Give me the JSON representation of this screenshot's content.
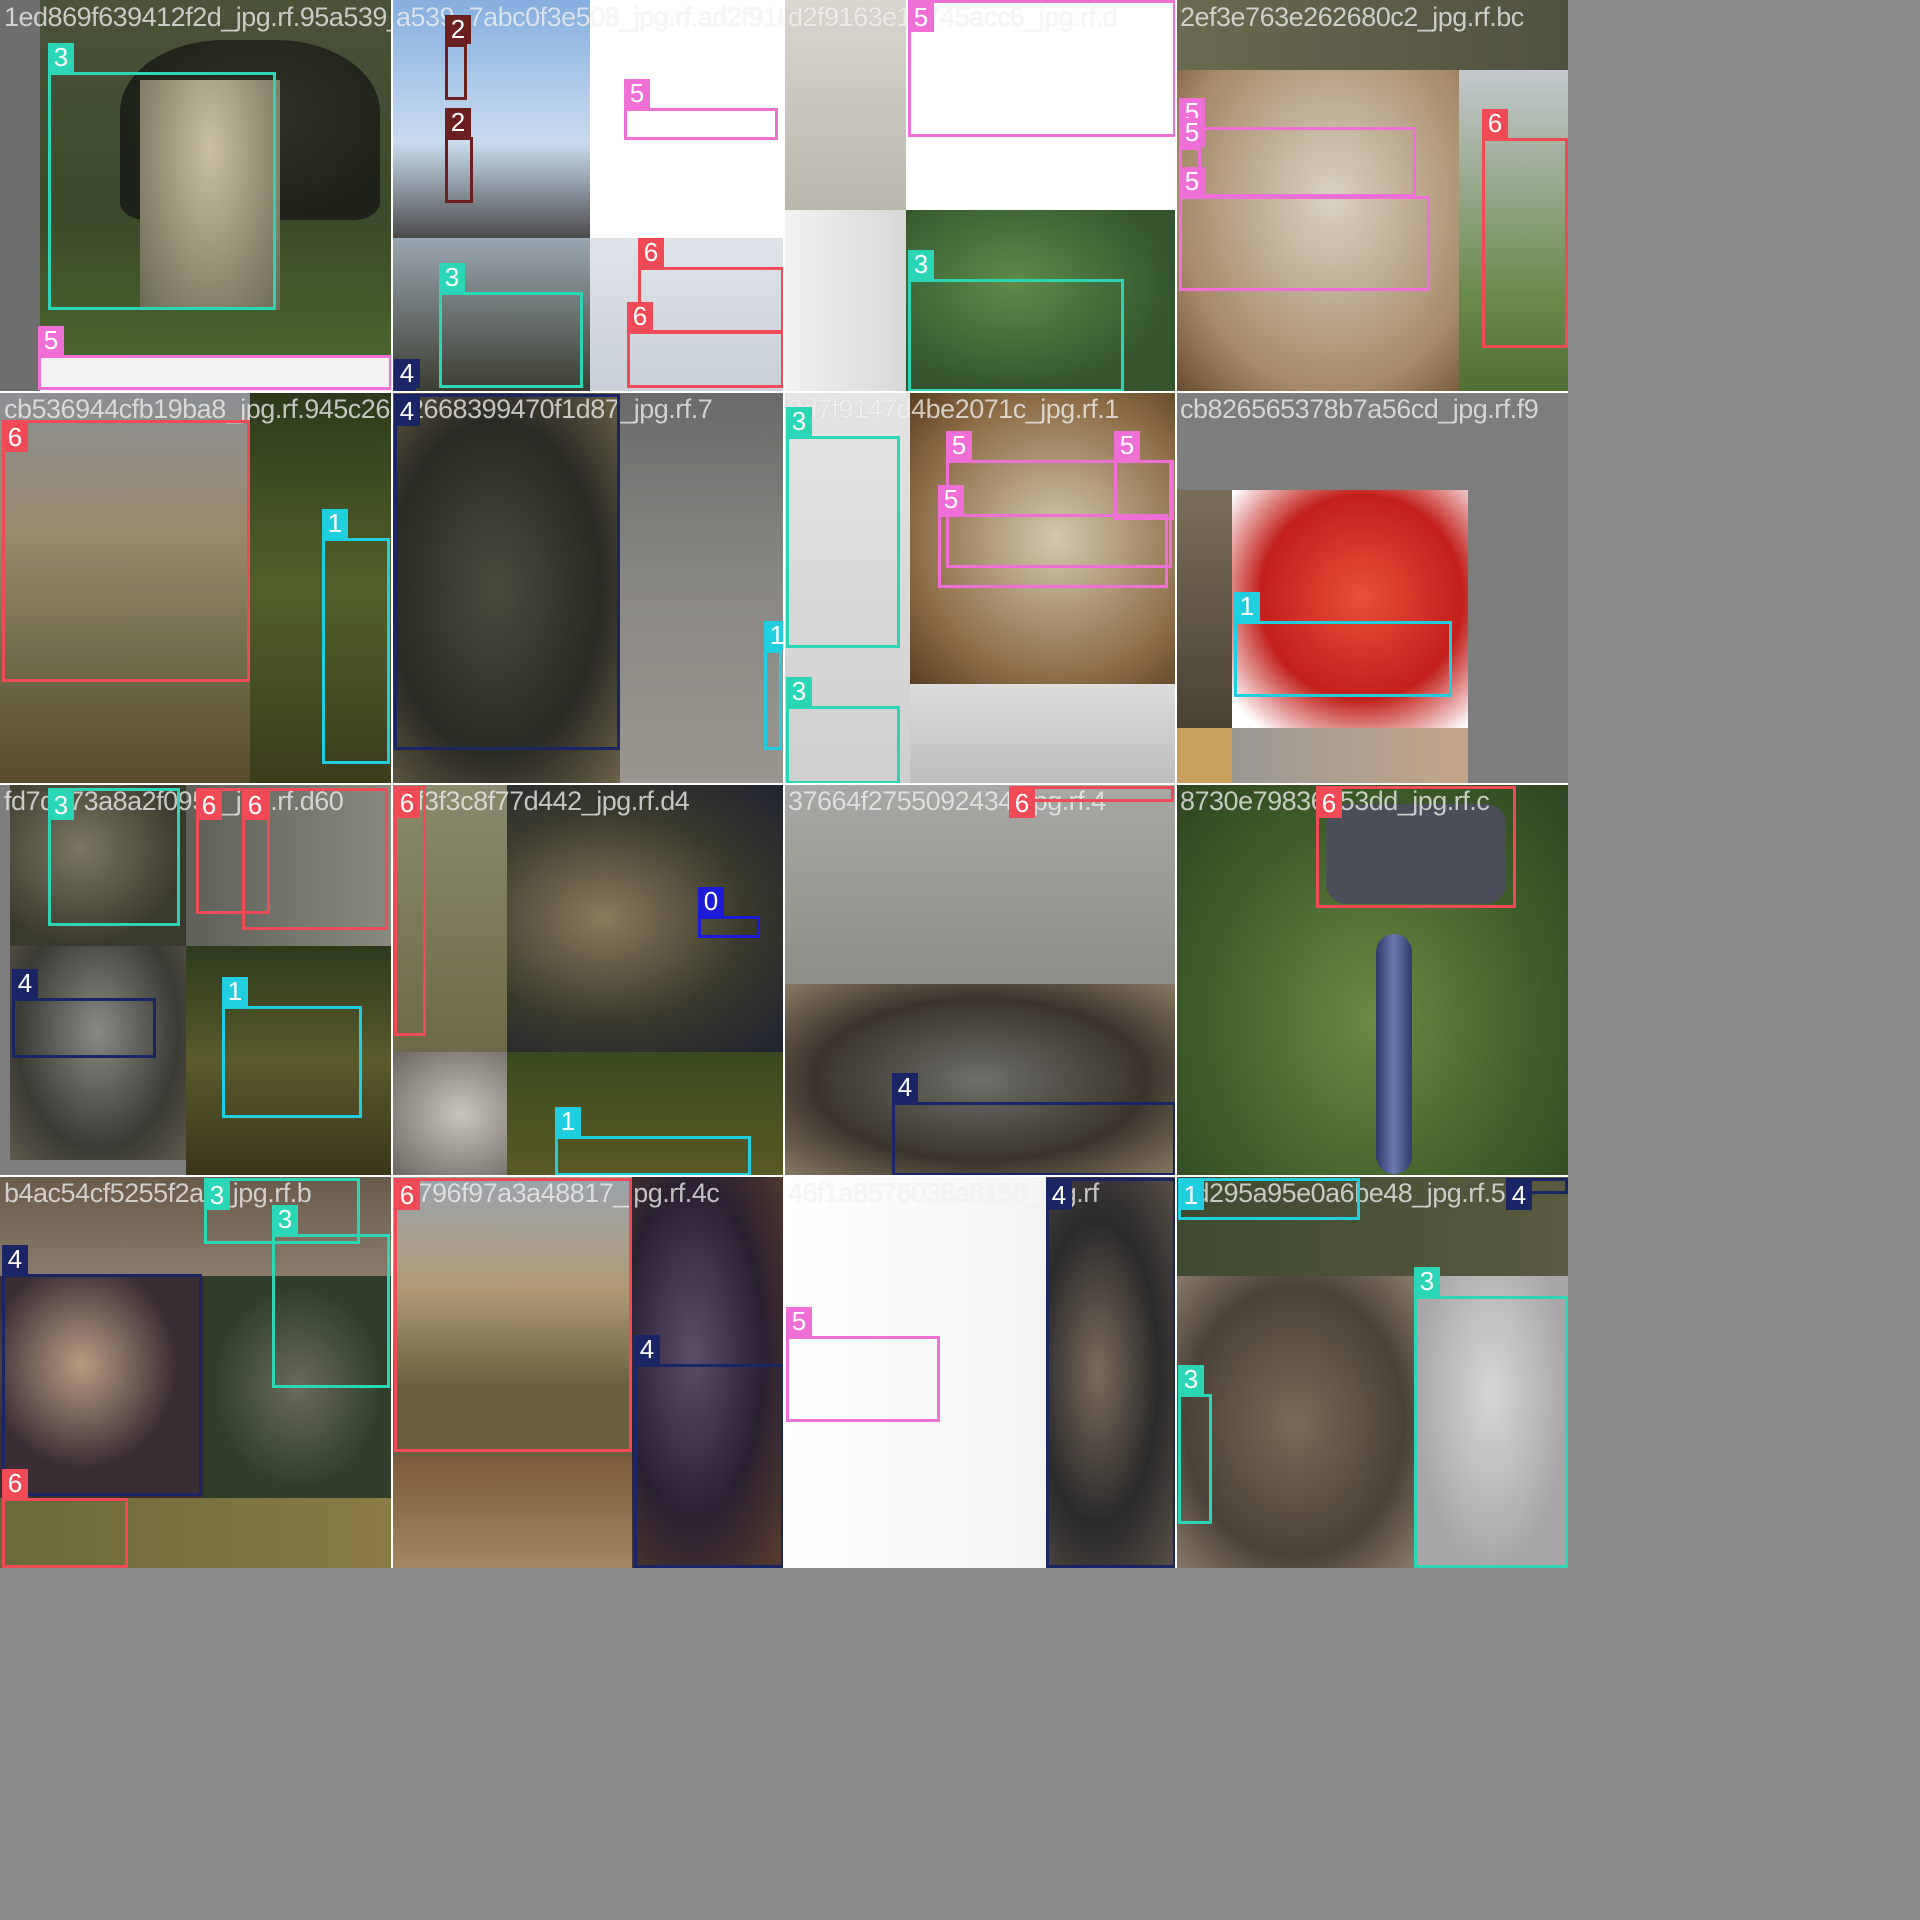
{
  "image": {
    "kind": "YOLO training batch mosaic",
    "grid": "4x4",
    "class_colors": {
      "0": "#1c1cd8",
      "1": "#1fcfe0",
      "2": "#6b1f1f",
      "3": "#2bd6b6",
      "4": "#1a2566",
      "5": "#ef6fd6",
      "6": "#ef4a55"
    }
  },
  "tiles": [
    {
      "filename": "1ed869f639412f2d_jpg.rf.95a539_7abc0f3e508_jpg.rf.ad",
      "boxes": [
        {
          "cls": "3"
        },
        {
          "cls": "5"
        }
      ]
    },
    {
      "filename": "a539_7abc0f3e508_jpg.rf.ad2f9163e10745",
      "boxes": [
        {
          "cls": "2"
        },
        {
          "cls": "2"
        },
        {
          "cls": "5"
        },
        {
          "cls": "3"
        },
        {
          "cls": "6"
        },
        {
          "cls": "6"
        },
        {
          "cls": "4"
        }
      ]
    },
    {
      "filename": "d2f9163e10745acc6_jpg.rf.d",
      "boxes": [
        {
          "cls": "5"
        },
        {
          "cls": "3"
        }
      ]
    },
    {
      "filename": "2ef3e763e262680c2_jpg.rf.bc",
      "boxes": [
        {
          "cls": "5"
        },
        {
          "cls": "5"
        },
        {
          "cls": "5"
        },
        {
          "cls": "6"
        }
      ]
    },
    {
      "filename": "cb536944cfb19ba8_jpg.rf.945c26683994d0f1d87_jpg.rf.7",
      "boxes": [
        {
          "cls": "6"
        },
        {
          "cls": "1"
        }
      ]
    },
    {
      "filename": "c2668399470f1d87_jpg.rf.7",
      "boxes": [
        {
          "cls": "4"
        },
        {
          "cls": "1"
        }
      ]
    },
    {
      "filename": "9d7f9147d4be2071c_jpg.rf.1",
      "boxes": [
        {
          "cls": "3"
        },
        {
          "cls": "5"
        },
        {
          "cls": "5"
        },
        {
          "cls": "5"
        },
        {
          "cls": "3"
        }
      ]
    },
    {
      "filename": "cb826565378b7a56cd_jpg.rf.f9",
      "boxes": [
        {
          "cls": "1"
        }
      ]
    },
    {
      "filename": "fd7d573a8a2f0953_jpg.rf.d60",
      "boxes": [
        {
          "cls": "3"
        },
        {
          "cls": "6"
        },
        {
          "cls": "6"
        },
        {
          "cls": "4"
        },
        {
          "cls": "1"
        }
      ]
    },
    {
      "filename": "0ff3f3c8f77d442_jpg.rf.d4",
      "boxes": [
        {
          "cls": "6"
        },
        {
          "cls": "0"
        },
        {
          "cls": "1"
        }
      ]
    },
    {
      "filename": "37664f2755092434_jpg.rf.4",
      "boxes": [
        {
          "cls": "6"
        },
        {
          "cls": "4"
        }
      ]
    },
    {
      "filename": "8730e79836253dd_jpg.rf.c",
      "boxes": [
        {
          "cls": "6"
        }
      ]
    },
    {
      "filename": "b4ac54cf5255f2a0_jpg.rf.b",
      "boxes": [
        {
          "cls": "3"
        },
        {
          "cls": "3"
        },
        {
          "cls": "4"
        },
        {
          "cls": "6"
        }
      ]
    },
    {
      "filename": "5f796f97a3a48817_jpg.rf.4c",
      "boxes": [
        {
          "cls": "6"
        },
        {
          "cls": "4"
        }
      ]
    },
    {
      "filename": "46f1a8576038a8150_jpg.rf",
      "boxes": [
        {
          "cls": "5"
        },
        {
          "cls": "4"
        }
      ]
    },
    {
      "filename": "0d295a95e0a6be48_jpg.rf.52",
      "boxes": [
        {
          "cls": "1"
        },
        {
          "cls": "4"
        },
        {
          "cls": "3"
        },
        {
          "cls": "3"
        }
      ]
    }
  ]
}
